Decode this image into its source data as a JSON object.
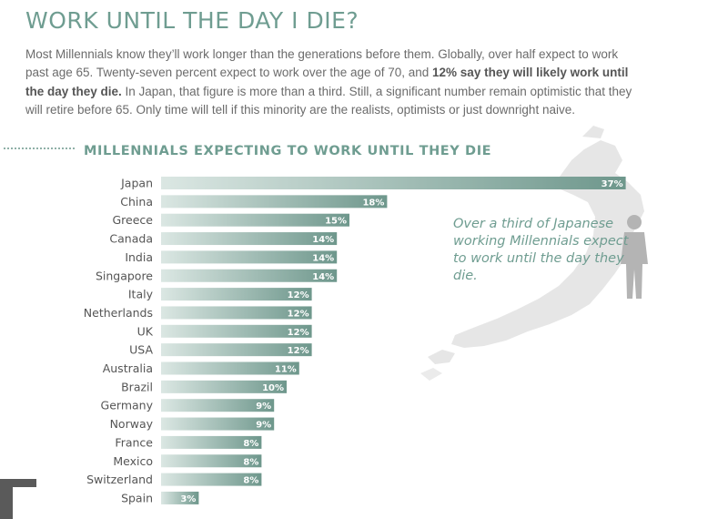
{
  "page": {
    "title": "WORK UNTIL THE DAY I DIE?",
    "intro_before": "Most Millennials know they’ll work longer than the generations before them. Globally, over half expect to work past age 65. Twenty-seven percent expect to work over the age of 70, and ",
    "intro_bold": "12% say they will likely work until the day they die.",
    "intro_after": " In Japan, that figure is more than a third. Still, a significant number remain optimistic that they will retire before 65. Only time will tell if this minority are the realists, optimists or just downright naive.",
    "chart_heading": "MILLENNIALS EXPECTING TO WORK UNTIL THEY DIE",
    "callout": "Over a third of Japanese working Millennials expect to work until the day they die."
  },
  "colors": {
    "accent": "#6f9d91",
    "bar_dark": "#6e978c",
    "bar_light": "#dbe7e3",
    "label_text": "#555555",
    "map_fill": "#e4e4e4"
  },
  "chart_data": {
    "type": "bar",
    "orientation": "horizontal",
    "title": "MILLENNIALS EXPECTING TO WORK UNTIL THEY DIE",
    "categories": [
      "Japan",
      "China",
      "Greece",
      "Canada",
      "India",
      "Singapore",
      "Italy",
      "Netherlands",
      "UK",
      "USA",
      "Australia",
      "Brazil",
      "Germany",
      "Norway",
      "France",
      "Mexico",
      "Switzerland",
      "Spain"
    ],
    "values": [
      37,
      18,
      15,
      14,
      14,
      14,
      12,
      12,
      12,
      12,
      11,
      10,
      9,
      9,
      8,
      8,
      8,
      3
    ],
    "value_labels": [
      "37%",
      "18%",
      "15%",
      "14%",
      "14%",
      "14%",
      "12%",
      "12%",
      "12%",
      "12%",
      "11%",
      "10%",
      "9%",
      "9%",
      "8%",
      "8%",
      "8%",
      "3%"
    ],
    "xlabel": "",
    "ylabel": "",
    "grid": false,
    "legend": "none"
  }
}
